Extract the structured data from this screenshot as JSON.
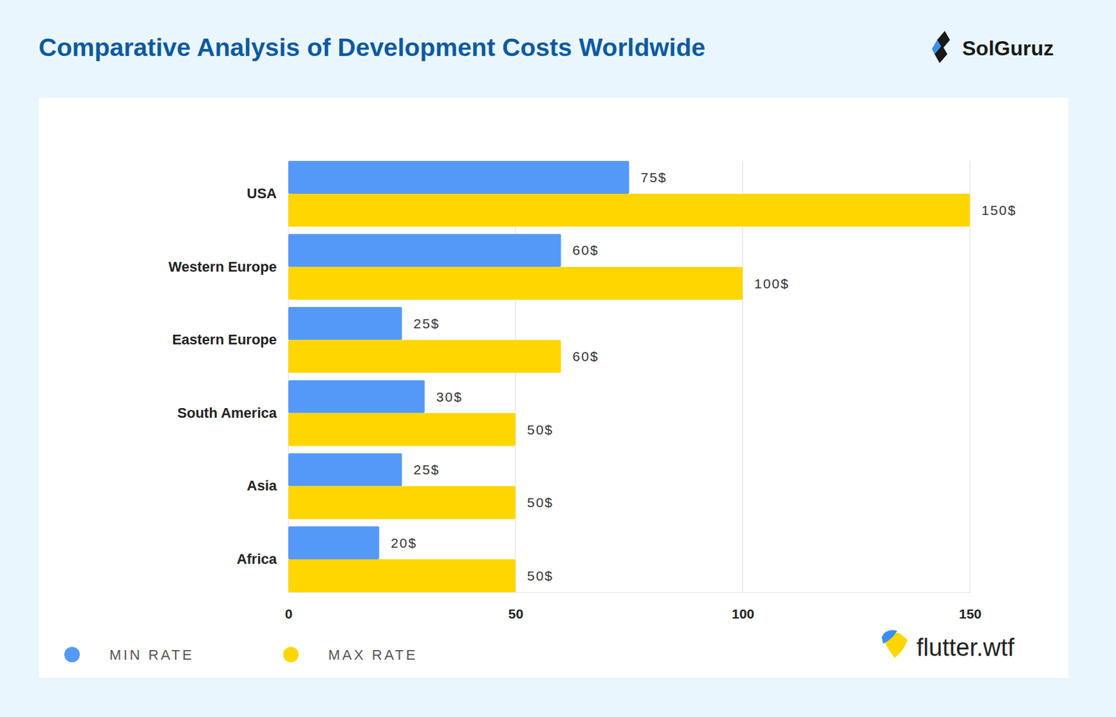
{
  "chart_data": {
    "type": "bar",
    "title": "Comparative Analysis of Development Costs Worldwide",
    "annotations": [
      "SolGuruz",
      "flutter.wtf"
    ],
    "orientation": "horizontal",
    "categories": [
      "USA",
      "Western Europe",
      "Eastern Europe",
      "South America",
      "Asia",
      "Africa"
    ],
    "series": [
      {
        "name": "MIN RATE",
        "color": "#5599f7",
        "values": [
          75,
          60,
          25,
          30,
          25,
          20
        ],
        "value_labels": [
          "75$",
          "60$",
          "25$",
          "30$",
          "25$",
          "20$"
        ]
      },
      {
        "name": "MAX RATE",
        "color": "#ffd600",
        "values": [
          150,
          100,
          60,
          50,
          50,
          50
        ],
        "value_labels": [
          "150$",
          "100$",
          "60$",
          "50$",
          "50$",
          "50$"
        ]
      }
    ],
    "xlim": [
      0,
      150
    ],
    "xticks": [
      0,
      50,
      100,
      150
    ],
    "grid": true,
    "legend": "bottom-left",
    "data_labels": true
  }
}
